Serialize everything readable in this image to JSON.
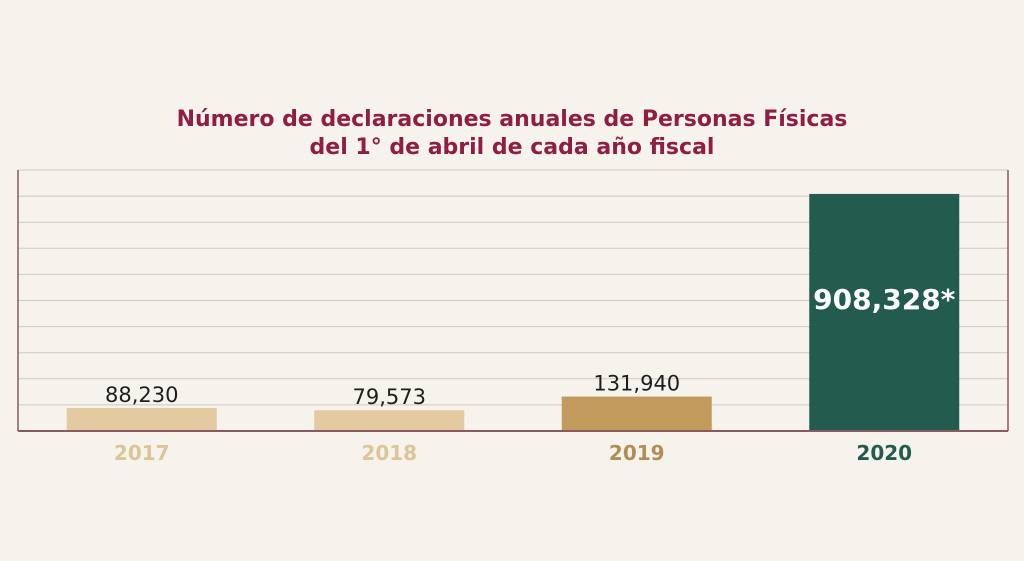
{
  "chart_data": {
    "type": "bar",
    "title_line1": "Número de declaraciones anuales de Personas Físicas",
    "title_line2": "del 1° de abril de cada año fiscal",
    "categories": [
      "2017",
      "2018",
      "2019",
      "2020"
    ],
    "values": [
      88230,
      79573,
      131940,
      908328
    ],
    "value_labels": [
      "88,230",
      "79,573",
      "131,940",
      "908,328*"
    ],
    "bar_colors": [
      "#e3caa0",
      "#e3caa0",
      "#c29a5e",
      "#235b4e"
    ],
    "category_colors": [
      "#dcc596",
      "#dcc596",
      "#b38d55",
      "#235b4e"
    ],
    "ylim": [
      0,
      1000000
    ],
    "grid": true,
    "xlabel": "",
    "ylabel": ""
  }
}
